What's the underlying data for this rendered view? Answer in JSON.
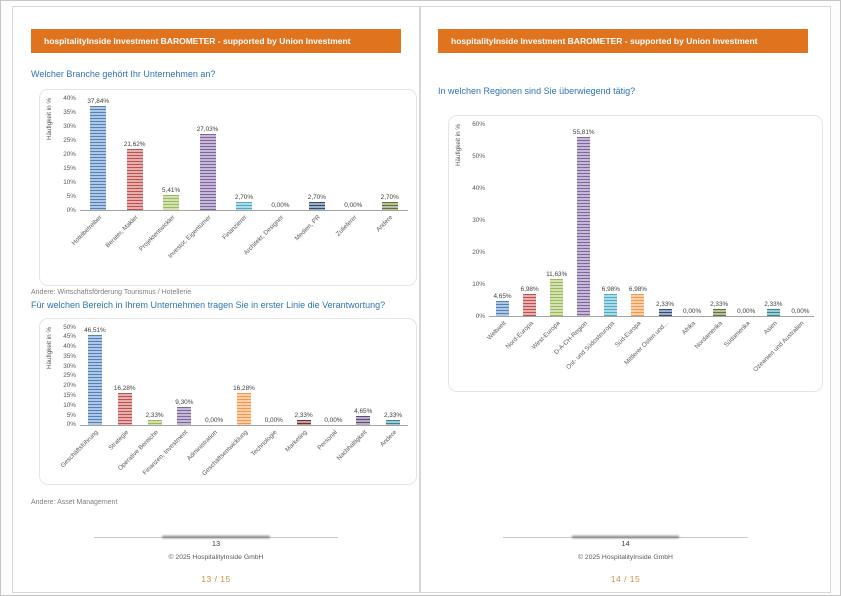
{
  "theme": {
    "banner_bg": "#E0731D",
    "banner_text": "#FFFFFF",
    "title_color": "#2E74B5",
    "note_color": "#7F7F7F",
    "indicator_color": "#D0903E",
    "page_bg": "#FFFFFF"
  },
  "pages": [
    {
      "banner": "hospitalityInside Investment BAROMETER - supported by Union Investment",
      "note_chart1": "Andere: Wirtschaftsförderung Tourismus / Hotellerie",
      "note_chart2": "Andere: Asset Management",
      "page_number": "13",
      "copyright": "© 2025 HospitalityInside GmbH",
      "indicator": "13 / 15"
    },
    {
      "banner": "hospitalityInside Investment BAROMETER - supported by Union Investment",
      "page_number": "14",
      "copyright": "© 2025 HospitalityInside GmbH",
      "indicator": "14 / 15"
    }
  ],
  "chart_data": [
    {
      "type": "bar",
      "title": "Welcher Branche gehört Ihr Unternehmen an?",
      "ylabel": "Häufigkeit in %",
      "ylim": [
        0,
        40
      ],
      "yticks": [
        "40%",
        "35%",
        "30%",
        "25%",
        "20%",
        "15%",
        "10%",
        "5%",
        "0%"
      ],
      "grid": false,
      "legend": "none",
      "categories": [
        "Hotelbetreiber",
        "Berater, Makler",
        "Projektentwickler",
        "Investor, Eigentümer",
        "Finanzierer",
        "Architekt, Designer",
        "Medien, PR",
        "Zulieferer",
        "Andere"
      ],
      "values": [
        37.84,
        21.62,
        5.41,
        27.03,
        2.7,
        0.0,
        2.7,
        0.0,
        2.7
      ],
      "value_labels": [
        "37,84%",
        "21,62%",
        "5,41%",
        "27,03%",
        "2,70%",
        "0,00%",
        "2,70%",
        "0,00%",
        "2,70%"
      ],
      "colors": [
        "#4F81BD",
        "#C0504D",
        "#9BBB59",
        "#8064A2",
        "#4BACC6",
        "#F79646",
        "#2C4D75",
        "#772C2A",
        "#5F7530"
      ]
    },
    {
      "type": "bar",
      "title": "Für welchen Bereich in Ihrem Unternehmen tragen Sie in erster Linie die Verantwortung?",
      "ylabel": "Häufigkeit in %",
      "ylim": [
        0,
        50
      ],
      "yticks": [
        "50%",
        "45%",
        "40%",
        "35%",
        "30%",
        "25%",
        "20%",
        "15%",
        "10%",
        "5%",
        "0%"
      ],
      "grid": false,
      "legend": "none",
      "categories": [
        "Geschäftsführung",
        "Strategie",
        "Operative Bereiche",
        "Finanzen, Investment",
        "Administration",
        "Geschäftsentwicklung",
        "Technologie",
        "Marketing",
        "Personal",
        "Nachhaltigkeit",
        "Andere"
      ],
      "values": [
        46.51,
        16.28,
        2.33,
        9.3,
        0.0,
        16.28,
        0.0,
        2.33,
        0.0,
        4.65,
        2.33
      ],
      "value_labels": [
        "46,51%",
        "16,28%",
        "2,33%",
        "9,30%",
        "0,00%",
        "16,28%",
        "0,00%",
        "2,33%",
        "0,00%",
        "4,65%",
        "2,33%"
      ],
      "colors": [
        "#4F81BD",
        "#C0504D",
        "#9BBB59",
        "#8064A2",
        "#4BACC6",
        "#F79646",
        "#2C4D75",
        "#772C2A",
        "#5F7530",
        "#604A7B",
        "#31859C"
      ]
    },
    {
      "type": "bar",
      "title": "In welchen Regionen sind Sie überwiegend tätig?",
      "ylabel": "Häufigkeit in %",
      "ylim": [
        0,
        60
      ],
      "yticks": [
        "60%",
        "50%",
        "40%",
        "30%",
        "20%",
        "10%",
        "0%"
      ],
      "grid": false,
      "legend": "none",
      "categories": [
        "Weltweit",
        "Nord-Europa",
        "West-Europa",
        "D-A-CH-Region",
        "Ost- und Südosteuropa",
        "Süd-Europa",
        "Mittlerer Osten und...",
        "Afrika",
        "Nordamerika",
        "Südamerika",
        "Asien",
        "Ozeanien und Australien"
      ],
      "values": [
        4.65,
        6.98,
        11.63,
        55.81,
        6.98,
        6.98,
        2.33,
        0.0,
        2.33,
        0.0,
        2.33,
        0.0
      ],
      "value_labels": [
        "4,65%",
        "6,98%",
        "11,63%",
        "55,81%",
        "6,98%",
        "6,98%",
        "2,33%",
        "0,00%",
        "2,33%",
        "0,00%",
        "2,33%",
        "0,00%"
      ],
      "colors": [
        "#4F81BD",
        "#C0504D",
        "#9BBB59",
        "#8064A2",
        "#4BACC6",
        "#F79646",
        "#2C4D75",
        "#772C2A",
        "#5F7530",
        "#604A7B",
        "#31859C",
        "#B65708"
      ]
    }
  ]
}
